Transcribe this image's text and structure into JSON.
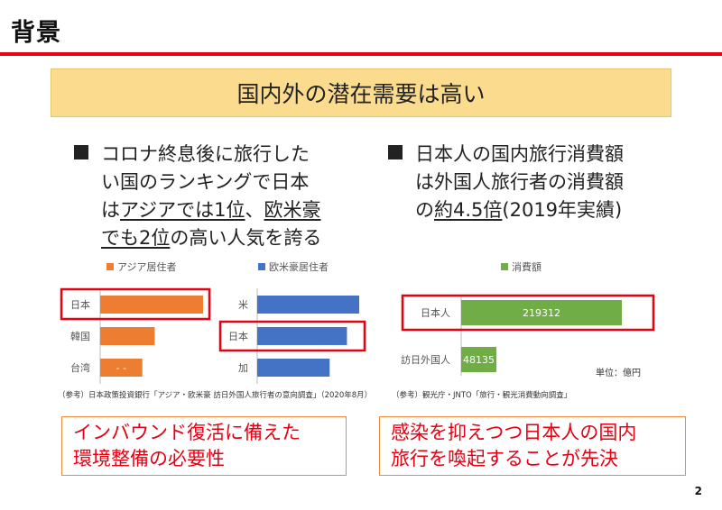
{
  "header": {
    "title": "背景"
  },
  "banner": {
    "text": "国内外の潜在需要は高い"
  },
  "bullets": {
    "left": {
      "line1": "コロナ終息後に旅行した",
      "line2": "い国のランキングで日本",
      "line3_plain": "は",
      "line3_u1": "アジアでは1位",
      "line3_mid": "、",
      "line3_u2": "欧米豪",
      "line4_u": "でも2位",
      "line4_plain": "の高い人気を誇る"
    },
    "right": {
      "line1": "日本人の国内旅行消費額",
      "line2": "は外国人旅行者の消費額",
      "line3_plain_a": "の",
      "line3_u": "約4.5倍",
      "line3_plain_b": "(2019年実績)"
    }
  },
  "colors": {
    "accent_red": "#e60012",
    "asia_bar": "#ed7d31",
    "west_bar": "#4472c4",
    "spend_bar": "#70ad47",
    "banner_bg": "#fbdc8f"
  },
  "chart_data": [
    {
      "type": "bar",
      "orientation": "horizontal",
      "legend": "アジア居住者",
      "categories": [
        "日本",
        "韓国",
        "台湾"
      ],
      "values": [
        100,
        53,
        41
      ],
      "highlight": "日本",
      "data_labels": [
        "",
        "",
        "- -"
      ]
    },
    {
      "type": "bar",
      "orientation": "horizontal",
      "legend": "欧米豪居住者",
      "categories": [
        "米",
        "日本",
        "加"
      ],
      "values": [
        100,
        88,
        71
      ],
      "highlight": "日本"
    },
    {
      "type": "bar",
      "orientation": "horizontal",
      "legend": "消費額",
      "categories": [
        "日本人",
        "訪日外国人"
      ],
      "values": [
        219312,
        48135
      ],
      "data_labels": [
        "219312",
        "48135"
      ],
      "highlight": "日本人",
      "unit_note": "単位：億円"
    }
  ],
  "sources": {
    "left": "（参考）日本政策投資銀行「アジア・欧米豪 訪日外国人旅行者の意向調査」（2020年8月）",
    "right": "（参考）観光庁・JNTO「旅行・観光消費動向調査」"
  },
  "callouts": {
    "left": {
      "line1": "インバウンド復活に備えた",
      "line2": "環境整備の必要性"
    },
    "right": {
      "line1": "感染を抑えつつ日本人の国内",
      "line2": "旅行を喚起することが先決"
    }
  },
  "page_number": "2"
}
